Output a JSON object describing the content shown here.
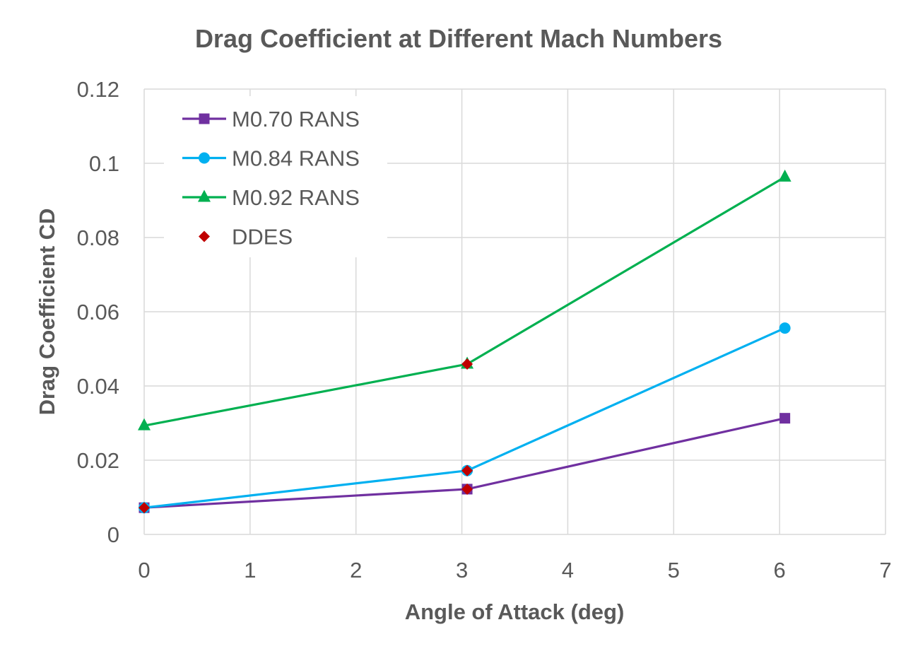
{
  "chart_data": {
    "type": "line",
    "title": "Drag Coefficient at Different Mach Numbers",
    "xlabel": "Angle of Attack (deg)",
    "ylabel": "Drag Coefficient CD",
    "xlim": [
      0,
      7
    ],
    "ylim": [
      0,
      0.12
    ],
    "x_ticks": [
      "0",
      "1",
      "2",
      "3",
      "4",
      "5",
      "6",
      "7"
    ],
    "y_ticks": [
      "0",
      "0.02",
      "0.04",
      "0.06",
      "0.08",
      "0.1",
      "0.12"
    ],
    "grid": true,
    "legend_position": "top-left",
    "series": [
      {
        "name": "M0.70 RANS",
        "color": "#7030a0",
        "marker": "square",
        "line": true,
        "x": [
          0,
          3.05,
          6.05
        ],
        "y": [
          0.0072,
          0.0122,
          0.0313
        ]
      },
      {
        "name": "M0.84 RANS",
        "color": "#00b0f0",
        "marker": "circle",
        "line": true,
        "x": [
          0,
          3.05,
          6.05
        ],
        "y": [
          0.0072,
          0.0172,
          0.0556
        ]
      },
      {
        "name": "M0.92 RANS",
        "color": "#00b050",
        "marker": "triangle",
        "line": true,
        "x": [
          0,
          3.05,
          6.05
        ],
        "y": [
          0.0293,
          0.0459,
          0.0963
        ]
      },
      {
        "name": "DDES",
        "color": "#c00000",
        "marker": "diamond",
        "line": false,
        "x": [
          0,
          3.05,
          3.05,
          3.05
        ],
        "y": [
          0.0072,
          0.0122,
          0.0172,
          0.0459
        ]
      }
    ]
  }
}
